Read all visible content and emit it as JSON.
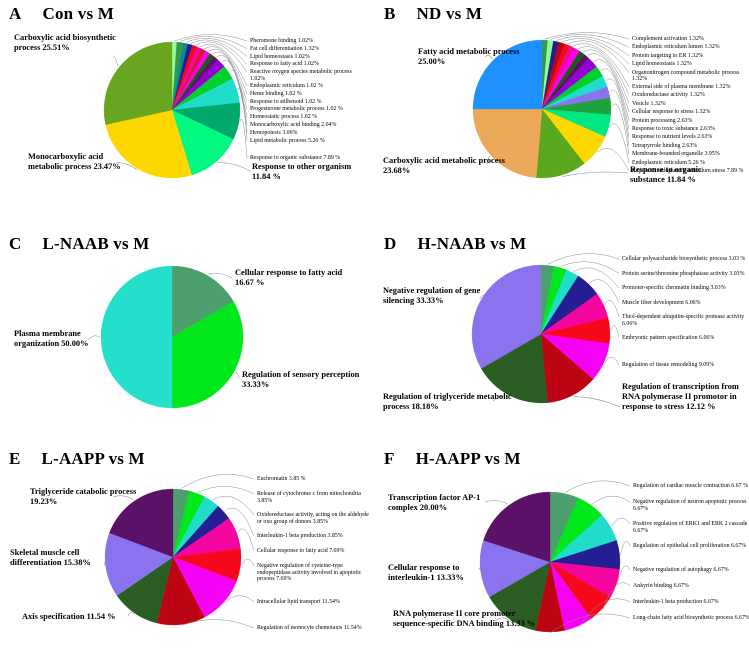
{
  "chart_data": [
    {
      "panel": "A",
      "title": "Con vs M",
      "type": "pie",
      "legend_position": "right",
      "slices": [
        {
          "label": "Pheromone binding",
          "pct": "1.02%",
          "value": 1.02,
          "color": "#98fb98",
          "emphasis": "small"
        },
        {
          "label": "Fat cell differentiation",
          "pct": "1.32%",
          "value": 1.32,
          "color": "#2e9b4e",
          "emphasis": "small"
        },
        {
          "label": "Lipid homeostasis",
          "pct": "1.02%",
          "value": 1.02,
          "color": "#0f8a8a",
          "emphasis": "small"
        },
        {
          "label": "Response to fatty acid",
          "pct": "1.02%",
          "value": 1.02,
          "color": "#251e92",
          "emphasis": "small"
        },
        {
          "label": "Reactive oxygen species metabolic process",
          "pct": "1.02%",
          "value": 1.02,
          "color": "#f5081c",
          "emphasis": "small"
        },
        {
          "label": "Endoplasmic reticulum",
          "pct": "1.02 %",
          "value": 1.02,
          "color": "#f5059f",
          "emphasis": "small"
        },
        {
          "label": "Heme binding",
          "pct": "1.02 %",
          "value": 1.02,
          "color": "#dc143c",
          "emphasis": "small"
        },
        {
          "label": "Response to stilbenoid",
          "pct": "1.02 %",
          "value": 1.02,
          "color": "#f502f5",
          "emphasis": "small"
        },
        {
          "label": "Progesterone metabolic process",
          "pct": "1.02 %",
          "value": 1.02,
          "color": "#1c5c14",
          "emphasis": "small"
        },
        {
          "label": "Homeostatic process",
          "pct": "1.02 %",
          "value": 1.02,
          "color": "#5b1168",
          "emphasis": "small"
        },
        {
          "label": "Monocarboxylic acid binding",
          "pct": "2.04%",
          "value": 2.04,
          "color": "#9400d3",
          "emphasis": "small"
        },
        {
          "label": "Hemopoiesis",
          "pct": "3.06%",
          "value": 3.06,
          "color": "#00d02a",
          "emphasis": "small"
        },
        {
          "label": "Lipid metabolic process",
          "pct": "5.26 %",
          "value": 5.26,
          "color": "#1fdccb",
          "emphasis": "small"
        },
        {
          "label": "Response to organic substance",
          "pct": "7.89 %",
          "value": 7.89,
          "color": "#00a86b",
          "emphasis": "small"
        },
        {
          "label": "Response to other organism",
          "pct": "11.84 %",
          "value": 11.84,
          "color": "#00f97e",
          "emphasis": "big"
        },
        {
          "label": "Monocarboxylic acid metabolic process",
          "pct": "23.47%",
          "value": 23.47,
          "color": "#ffd700",
          "emphasis": "big"
        },
        {
          "label": "Carboxylic acid biosynthetic process",
          "pct": "25.51%",
          "value": 25.51,
          "color": "#69a620",
          "emphasis": "big"
        }
      ]
    },
    {
      "panel": "B",
      "title": "ND vs M",
      "type": "pie",
      "legend_position": "right",
      "slices": [
        {
          "label": "Complement activation",
          "pct": "1.32%",
          "value": 1.32,
          "color": "#2e9b4e",
          "emphasis": "small"
        },
        {
          "label": "Endoplasmic reticulum lumen",
          "pct": "1.32%",
          "value": 1.32,
          "color": "#98fb98",
          "emphasis": "small"
        },
        {
          "label": "Protein targeting to ER",
          "pct": "1.32%",
          "value": 1.32,
          "color": "#251e92",
          "emphasis": "small"
        },
        {
          "label": "Lipid homeostasis",
          "pct": "1.32%",
          "value": 1.32,
          "color": "#bd0413",
          "emphasis": "small"
        },
        {
          "label": "Organonitrogen compound metabolic process",
          "pct": "1.32%",
          "value": 1.32,
          "color": "#f5081c",
          "emphasis": "small"
        },
        {
          "label": "External side of plasma membrane",
          "pct": "1.32%",
          "value": 1.32,
          "color": "#f5059f",
          "emphasis": "small"
        },
        {
          "label": "Oxidoreductase activity",
          "pct": "1.32%",
          "value": 1.32,
          "color": "#f502f5",
          "emphasis": "small"
        },
        {
          "label": "Vesicle",
          "pct": "1.32%",
          "value": 1.32,
          "color": "#1c5c14",
          "emphasis": "small"
        },
        {
          "label": "Cellular response to stress",
          "pct": "1.32%",
          "value": 1.32,
          "color": "#5b1168",
          "emphasis": "small"
        },
        {
          "label": "Protein processing",
          "pct": "2.63%",
          "value": 2.63,
          "color": "#9400d3",
          "emphasis": "small"
        },
        {
          "label": "Response to toxic substance",
          "pct": "2.63%",
          "value": 2.63,
          "color": "#00d02a",
          "emphasis": "small"
        },
        {
          "label": "Response to nutrient levels",
          "pct": "2.63%",
          "value": 2.63,
          "color": "#1fdccb",
          "emphasis": "small"
        },
        {
          "label": "Tetrapyrrole binding",
          "pct": "2.63%",
          "value": 2.63,
          "color": "#8b72ee",
          "emphasis": "small"
        },
        {
          "label": "Membrane-bounded organelle",
          "pct": "3.95%",
          "value": 3.95,
          "color": "#1fa13d",
          "emphasis": "small"
        },
        {
          "label": "Endoplasmic reticulum",
          "pct": "5.26 %",
          "value": 5.26,
          "color": "#00e882",
          "emphasis": "small"
        },
        {
          "label": "Repose to endoplasmic reticulum stress",
          "pct": "7.89 %",
          "value": 7.89,
          "color": "#ffd700",
          "emphasis": "small"
        },
        {
          "label": "Response to organic substance",
          "pct": "11.84 %",
          "value": 11.84,
          "color": "#5aa81e",
          "emphasis": "big"
        },
        {
          "label": "Carboxylic acid metabolic process",
          "pct": "23.68%",
          "value": 23.68,
          "color": "#eda95a",
          "emphasis": "big"
        },
        {
          "label": "Fatty acid metabolic process",
          "pct": "25.00%",
          "value": 25.0,
          "color": "#1e90ff",
          "emphasis": "big"
        }
      ]
    },
    {
      "panel": "C",
      "title": "L-NAAB vs M",
      "type": "pie",
      "legend_position": "around",
      "slices": [
        {
          "label": "Cellular response to fatty acid",
          "pct": "16.67 %",
          "value": 16.67,
          "color": "#4d9f6d",
          "emphasis": "big"
        },
        {
          "label": "Regulation of sensory perception",
          "pct": "33.33%",
          "value": 33.33,
          "color": "#00e81c",
          "emphasis": "big"
        },
        {
          "label": "Plasma membrane organization",
          "pct": "50.00%",
          "value": 50.0,
          "color": "#25dfcd",
          "emphasis": "big"
        }
      ]
    },
    {
      "panel": "D",
      "title": "H-NAAB vs M",
      "type": "pie",
      "legend_position": "right",
      "slices": [
        {
          "label": "Cellular polysaccharide biosynthetic process",
          "pct": "3.03 %",
          "value": 3.03,
          "color": "#4d9f6d",
          "emphasis": "small"
        },
        {
          "label": "Protein serine/threonine phosphatase activity",
          "pct": "3.03%",
          "value": 3.03,
          "color": "#00e81c",
          "emphasis": "small"
        },
        {
          "label": "Promoter-specific chromatin binding",
          "pct": "3.03%",
          "value": 3.03,
          "color": "#1fdccb",
          "emphasis": "small"
        },
        {
          "label": "Muscle fiber development",
          "pct": "6.06%",
          "value": 6.06,
          "color": "#251e92",
          "emphasis": "small"
        },
        {
          "label": "Thiol-dependent ubiquitin-specific protease activity",
          "pct": "6.06%",
          "value": 6.06,
          "color": "#f5059f",
          "emphasis": "small"
        },
        {
          "label": "Embryonic pattern specification",
          "pct": "6.06%",
          "value": 6.06,
          "color": "#f5081c",
          "emphasis": "small"
        },
        {
          "label": "Regulation of tissue remodeling",
          "pct": "9.09%",
          "value": 9.09,
          "color": "#f502f5",
          "emphasis": "small"
        },
        {
          "label": "Regulation of transcription from RNA polymerase II promotor in response to stress",
          "pct": "12.12 %",
          "value": 12.12,
          "color": "#bd0413",
          "emphasis": "big"
        },
        {
          "label": "Regulation of triglyceride metabolic process",
          "pct": "18.18%",
          "value": 18.18,
          "color": "#2a5e22",
          "emphasis": "big"
        },
        {
          "label": "Negative regulation of gene silencing",
          "pct": "33.33%",
          "value": 33.33,
          "color": "#8b72ee",
          "emphasis": "big"
        }
      ]
    },
    {
      "panel": "E",
      "title": "L-AAPP vs M",
      "type": "pie",
      "legend_position": "right",
      "slices": [
        {
          "label": "Euchromatin",
          "pct": "3.85 %",
          "value": 3.85,
          "color": "#4d9f6d",
          "emphasis": "small"
        },
        {
          "label": "Release of cytochrome c from mitochondria",
          "pct": "3.85%",
          "value": 3.85,
          "color": "#00e81c",
          "emphasis": "small"
        },
        {
          "label": "Oxidoreductase activity, acting on the aldehyde or oxo group of donors",
          "pct": "3.85%",
          "value": 3.85,
          "color": "#1fdccb",
          "emphasis": "small"
        },
        {
          "label": "Interleukin-1 beta production",
          "pct": "3.85%",
          "value": 3.85,
          "color": "#251e92",
          "emphasis": "small"
        },
        {
          "label": "Cellular response to fatty acid",
          "pct": "7.69%",
          "value": 7.69,
          "color": "#f5059f",
          "emphasis": "small"
        },
        {
          "label": "Negative regulation of cysteine-type endopeptidase activity involved in apoptotic process",
          "pct": "7.69%",
          "value": 7.69,
          "color": "#f5081c",
          "emphasis": "small"
        },
        {
          "label": "Intracellular lipid transport",
          "pct": "11.54%",
          "value": 11.54,
          "color": "#f502f5",
          "emphasis": "small"
        },
        {
          "label": "Regulation of monocyte chemotaxis",
          "pct": "11.54%",
          "value": 11.54,
          "color": "#bd0413",
          "emphasis": "small"
        },
        {
          "label": "Axis specification",
          "pct": "11.54 %",
          "value": 11.54,
          "color": "#2a5e22",
          "emphasis": "big"
        },
        {
          "label": "Skeletal muscle cell differentiation",
          "pct": "15.38%",
          "value": 15.38,
          "color": "#8b72ee",
          "emphasis": "big"
        },
        {
          "label": "Triglyceride catabolic process",
          "pct": "19.23%",
          "value": 19.23,
          "color": "#5b1168",
          "emphasis": "big"
        }
      ]
    },
    {
      "panel": "F",
      "title": "H-AAPP vs M",
      "type": "pie",
      "legend_position": "right",
      "slices": [
        {
          "label": "Regulation of cardiac muscle contraction",
          "pct": "6.67 %",
          "value": 6.67,
          "color": "#4d9f6d",
          "emphasis": "small"
        },
        {
          "label": "Negative regulation of neuron apoptotic process",
          "pct": "6.67%",
          "value": 6.67,
          "color": "#00e81c",
          "emphasis": "small"
        },
        {
          "label": "Positive regulation of ERK1 and ERK 2 cascade",
          "pct": "6.67%",
          "value": 6.67,
          "color": "#1fdccb",
          "emphasis": "small"
        },
        {
          "label": "Regulation of epithelial cell proliferation",
          "pct": "6.67%",
          "value": 6.67,
          "color": "#251e92",
          "emphasis": "small"
        },
        {
          "label": "Negative regulation of autophagy",
          "pct": "6.67%",
          "value": 6.67,
          "color": "#f5059f",
          "emphasis": "small"
        },
        {
          "label": "Ankyrin binding",
          "pct": "6.67%",
          "value": 6.67,
          "color": "#f5081c",
          "emphasis": "small"
        },
        {
          "label": "Interleukin-1 beta production",
          "pct": "6.67%",
          "value": 6.67,
          "color": "#f502f5",
          "emphasis": "small"
        },
        {
          "label": "Long-chain fatty acid biosynthetic process",
          "pct": "6.67%",
          "value": 6.67,
          "color": "#bd0413",
          "emphasis": "small"
        },
        {
          "label": "RNA polymerase II core promoter sequence-specific DNA binding",
          "pct": "13.33 %",
          "value": 13.33,
          "color": "#2a5e22",
          "emphasis": "big"
        },
        {
          "label": "Cellular response to interleukin-1",
          "pct": "13.33%",
          "value": 13.33,
          "color": "#8b72ee",
          "emphasis": "big"
        },
        {
          "label": "Transcription factor AP-1 complex",
          "pct": "20.00%",
          "value": 20.0,
          "color": "#5b1168",
          "emphasis": "big"
        }
      ]
    }
  ],
  "style": {
    "leader_line_color": "#8c8c8c",
    "background": "#ffffff",
    "text_color": "#000000"
  }
}
